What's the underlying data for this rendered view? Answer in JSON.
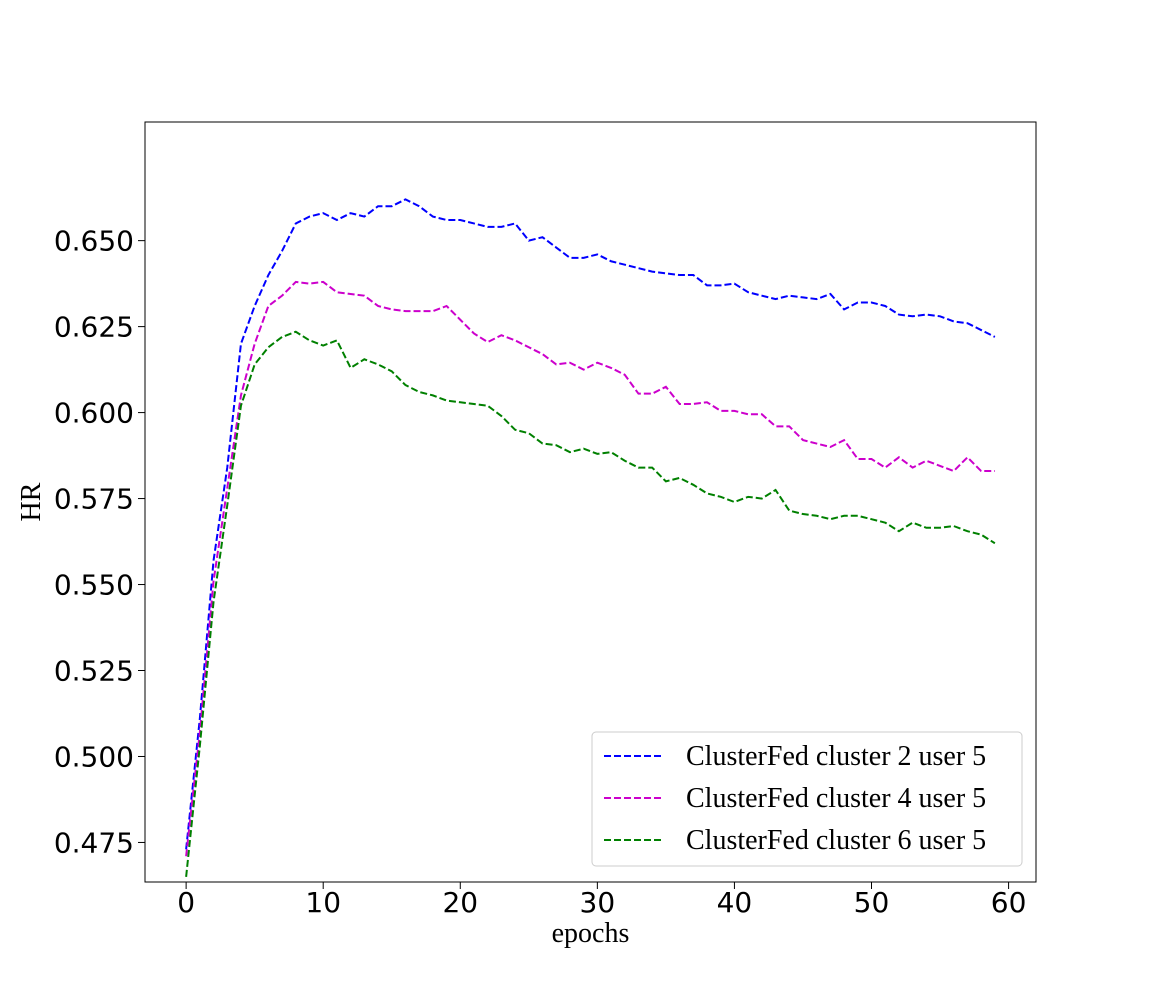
{
  "chart_data": {
    "type": "line",
    "xlabel": "epochs",
    "ylabel": "HR",
    "xlim": [
      -3,
      62
    ],
    "ylim": [
      0.4635,
      0.6845
    ],
    "xticks": [
      0,
      10,
      20,
      30,
      40,
      50,
      60
    ],
    "yticks": [
      0.475,
      0.5,
      0.525,
      0.55,
      0.575,
      0.6,
      0.625,
      0.65
    ],
    "ytick_labels": [
      "0.475",
      "0.500",
      "0.525",
      "0.550",
      "0.575",
      "0.600",
      "0.625",
      "0.650"
    ],
    "grid": false,
    "legend_position": "lower-right",
    "line_style": "dashed",
    "series": [
      {
        "name": "ClusterFed cluster 2 user 5",
        "color": "#0000ff",
        "x": [
          0,
          1,
          2,
          3,
          4,
          5,
          6,
          7,
          8,
          9,
          10,
          11,
          12,
          13,
          14,
          15,
          16,
          17,
          18,
          19,
          20,
          21,
          22,
          23,
          24,
          25,
          26,
          27,
          28,
          29,
          30,
          31,
          32,
          33,
          34,
          35,
          36,
          37,
          38,
          39,
          40,
          41,
          42,
          43,
          44,
          45,
          46,
          47,
          48,
          49,
          50,
          51,
          52,
          53,
          54,
          55,
          56,
          57,
          58,
          59
        ],
        "values": [
          0.473,
          0.511,
          0.557,
          0.584,
          0.62,
          0.631,
          0.64,
          0.647,
          0.655,
          0.657,
          0.658,
          0.656,
          0.658,
          0.657,
          0.66,
          0.66,
          0.662,
          0.66,
          0.657,
          0.656,
          0.656,
          0.655,
          0.654,
          0.654,
          0.655,
          0.65,
          0.651,
          0.648,
          0.645,
          0.645,
          0.646,
          0.644,
          0.643,
          0.642,
          0.641,
          0.6405,
          0.64,
          0.64,
          0.637,
          0.637,
          0.6375,
          0.635,
          0.634,
          0.633,
          0.634,
          0.6335,
          0.633,
          0.6345,
          0.63,
          0.632,
          0.632,
          0.631,
          0.6285,
          0.628,
          0.6285,
          0.628,
          0.6265,
          0.626,
          0.624,
          0.622
        ]
      },
      {
        "name": "ClusterFed cluster 4 user 5",
        "color": "#cc00cc",
        "x": [
          0,
          1,
          2,
          3,
          4,
          5,
          6,
          7,
          8,
          9,
          10,
          11,
          12,
          13,
          14,
          15,
          16,
          17,
          18,
          19,
          20,
          21,
          22,
          23,
          24,
          25,
          26,
          27,
          28,
          29,
          30,
          31,
          32,
          33,
          34,
          35,
          36,
          37,
          38,
          39,
          40,
          41,
          42,
          43,
          44,
          45,
          46,
          47,
          48,
          49,
          50,
          51,
          52,
          53,
          54,
          55,
          56,
          57,
          58,
          59
        ],
        "values": [
          0.471,
          0.507,
          0.551,
          0.578,
          0.605,
          0.62,
          0.631,
          0.634,
          0.638,
          0.6375,
          0.638,
          0.635,
          0.6345,
          0.634,
          0.631,
          0.63,
          0.6295,
          0.6295,
          0.6295,
          0.631,
          0.627,
          0.623,
          0.6205,
          0.6225,
          0.621,
          0.619,
          0.617,
          0.614,
          0.6145,
          0.6125,
          0.6145,
          0.613,
          0.611,
          0.6055,
          0.6055,
          0.6075,
          0.6025,
          0.6025,
          0.603,
          0.6005,
          0.6005,
          0.5995,
          0.5995,
          0.596,
          0.596,
          0.592,
          0.591,
          0.59,
          0.592,
          0.5865,
          0.5865,
          0.584,
          0.587,
          0.584,
          0.586,
          0.5845,
          0.583,
          0.587,
          0.583,
          0.583
        ]
      },
      {
        "name": "ClusterFed cluster 6 user 5",
        "color": "#008000",
        "x": [
          0,
          1,
          2,
          3,
          4,
          5,
          6,
          7,
          8,
          9,
          10,
          11,
          12,
          13,
          14,
          15,
          16,
          17,
          18,
          19,
          20,
          21,
          22,
          23,
          24,
          25,
          26,
          27,
          28,
          29,
          30,
          31,
          32,
          33,
          34,
          35,
          36,
          37,
          38,
          39,
          40,
          41,
          42,
          43,
          44,
          45,
          46,
          47,
          48,
          49,
          50,
          51,
          52,
          53,
          54,
          55,
          56,
          57,
          58,
          59
        ],
        "values": [
          0.465,
          0.503,
          0.545,
          0.573,
          0.602,
          0.614,
          0.619,
          0.622,
          0.6235,
          0.621,
          0.6195,
          0.621,
          0.613,
          0.6155,
          0.614,
          0.612,
          0.608,
          0.606,
          0.605,
          0.6035,
          0.603,
          0.6025,
          0.602,
          0.599,
          0.595,
          0.594,
          0.591,
          0.5905,
          0.5885,
          0.5895,
          0.588,
          0.5885,
          0.586,
          0.584,
          0.584,
          0.58,
          0.581,
          0.579,
          0.5765,
          0.5755,
          0.574,
          0.5755,
          0.575,
          0.5775,
          0.5715,
          0.5705,
          0.57,
          0.569,
          0.57,
          0.57,
          0.569,
          0.568,
          0.5655,
          0.568,
          0.5665,
          0.5665,
          0.567,
          0.5655,
          0.5645,
          0.562
        ]
      }
    ]
  }
}
